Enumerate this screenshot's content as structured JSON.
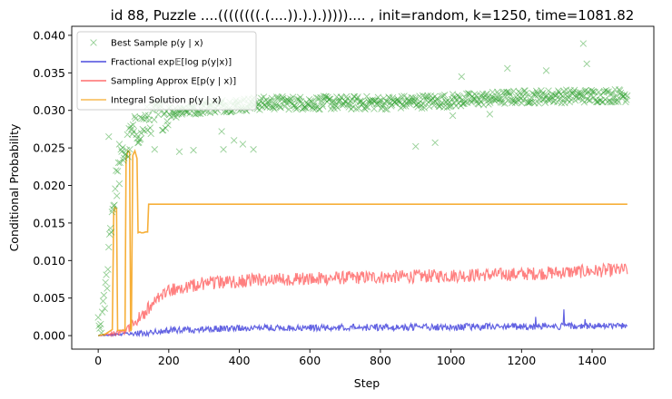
{
  "chart_data": {
    "type": "line",
    "title": "id 88, Puzzle ....((((((((.(....)).).).))))).... , init=random, k=1250, time=1081.82",
    "xlabel": "Step",
    "ylabel": "Conditional Probability",
    "xlim": [
      -75,
      1575
    ],
    "ylim": [
      -0.0018,
      0.0412
    ],
    "xticks": [
      0,
      200,
      400,
      600,
      800,
      1000,
      1200,
      1400
    ],
    "xtick_labels": [
      "0",
      "200",
      "400",
      "600",
      "800",
      "1000",
      "1200",
      "1400"
    ],
    "yticks": [
      0.0,
      0.005,
      0.01,
      0.015,
      0.02,
      0.025,
      0.03,
      0.035,
      0.04
    ],
    "ytick_labels": [
      "0.000",
      "0.005",
      "0.010",
      "0.015",
      "0.020",
      "0.025",
      "0.030",
      "0.035",
      "0.040"
    ],
    "grid": false,
    "legend_position": "top-left",
    "series": [
      {
        "name": "Best Sample p(y | x)",
        "kind": "scatter-x",
        "color": "#2ca02c",
        "anchors": [
          [
            0,
            0.0003
          ],
          [
            15,
            0.003
          ],
          [
            25,
            0.008
          ],
          [
            35,
            0.015
          ],
          [
            50,
            0.02
          ],
          [
            70,
            0.024
          ],
          [
            100,
            0.027
          ],
          [
            150,
            0.029
          ],
          [
            200,
            0.0298
          ],
          [
            300,
            0.0305
          ],
          [
            500,
            0.031
          ],
          [
            800,
            0.031
          ],
          [
            1000,
            0.0313
          ],
          [
            1200,
            0.0318
          ],
          [
            1500,
            0.032
          ]
        ],
        "outliers": [
          [
            30,
            0.0265
          ],
          [
            60,
            0.0255
          ],
          [
            120,
            0.0262
          ],
          [
            160,
            0.0248
          ],
          [
            230,
            0.0245
          ],
          [
            270,
            0.0247
          ],
          [
            350,
            0.0272
          ],
          [
            355,
            0.0248
          ],
          [
            385,
            0.026
          ],
          [
            410,
            0.0255
          ],
          [
            440,
            0.0248
          ],
          [
            900,
            0.0252
          ],
          [
            955,
            0.0257
          ],
          [
            1030,
            0.0345
          ],
          [
            1160,
            0.0356
          ],
          [
            1270,
            0.0353
          ],
          [
            1375,
            0.0389
          ],
          [
            1385,
            0.0362
          ],
          [
            1005,
            0.0293
          ],
          [
            1110,
            0.0295
          ]
        ]
      },
      {
        "name": "Fractional exp𝔼[log p(y|x)]",
        "kind": "line",
        "color": "#1f1fd6",
        "anchors": [
          [
            0,
            0.0
          ],
          [
            100,
            0.0002
          ],
          [
            200,
            0.0007
          ],
          [
            400,
            0.001
          ],
          [
            800,
            0.0011
          ],
          [
            1200,
            0.0012
          ],
          [
            1500,
            0.0013
          ]
        ],
        "spikes": [
          [
            1240,
            0.0025
          ],
          [
            1320,
            0.0035
          ],
          [
            1380,
            0.0022
          ]
        ]
      },
      {
        "name": "Sampling Approx E[p(y | x)]",
        "kind": "line",
        "color": "#ff4a4a",
        "anchors": [
          [
            0,
            0.0
          ],
          [
            80,
            0.0006
          ],
          [
            120,
            0.0025
          ],
          [
            160,
            0.0045
          ],
          [
            200,
            0.006
          ],
          [
            300,
            0.007
          ],
          [
            500,
            0.0075
          ],
          [
            800,
            0.0078
          ],
          [
            1200,
            0.0082
          ],
          [
            1500,
            0.0088
          ]
        ]
      },
      {
        "name": "Integral Solution p(y | x)",
        "kind": "line",
        "color": "#f5a623",
        "points": [
          [
            0,
            0.0
          ],
          [
            20,
            0.0002
          ],
          [
            40,
            0.0008
          ],
          [
            44,
            0.0163
          ],
          [
            47,
            0.0171
          ],
          [
            52,
            0.0169
          ],
          [
            55,
            0.0007
          ],
          [
            76,
            0.0007
          ],
          [
            79,
            0.0235
          ],
          [
            84,
            0.0246
          ],
          [
            89,
            0.0245
          ],
          [
            92,
            0.0006
          ],
          [
            94,
            0.0008
          ],
          [
            98,
            0.024
          ],
          [
            104,
            0.0246
          ],
          [
            110,
            0.0236
          ],
          [
            113,
            0.0137
          ],
          [
            118,
            0.0138
          ],
          [
            122,
            0.0137
          ],
          [
            128,
            0.0137
          ],
          [
            134,
            0.0138
          ],
          [
            140,
            0.0138
          ],
          [
            143,
            0.0175
          ],
          [
            1500,
            0.0175
          ]
        ]
      }
    ]
  }
}
